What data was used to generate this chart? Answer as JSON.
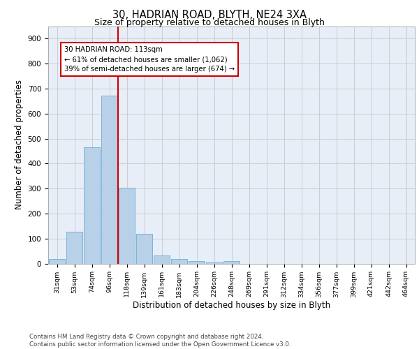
{
  "title1": "30, HADRIAN ROAD, BLYTH, NE24 3XA",
  "title2": "Size of property relative to detached houses in Blyth",
  "xlabel": "Distribution of detached houses by size in Blyth",
  "ylabel": "Number of detached properties",
  "bar_labels": [
    "31sqm",
    "53sqm",
    "74sqm",
    "96sqm",
    "118sqm",
    "139sqm",
    "161sqm",
    "183sqm",
    "204sqm",
    "226sqm",
    "248sqm",
    "269sqm",
    "291sqm",
    "312sqm",
    "334sqm",
    "356sqm",
    "377sqm",
    "399sqm",
    "421sqm",
    "442sqm",
    "464sqm"
  ],
  "bar_values": [
    18,
    128,
    465,
    672,
    302,
    118,
    33,
    18,
    10,
    5,
    10,
    0,
    0,
    0,
    0,
    0,
    0,
    0,
    0,
    0,
    0
  ],
  "bar_color": "#b8d0e8",
  "bar_edge_color": "#6aaed6",
  "vline_color": "#cc0000",
  "annotation_line1": "30 HADRIAN ROAD: 113sqm",
  "annotation_line2": "← 61% of detached houses are smaller (1,062)",
  "annotation_line3": "39% of semi-detached houses are larger (674) →",
  "annotation_box_color": "white",
  "annotation_box_edge": "#cc0000",
  "ylim": [
    0,
    950
  ],
  "yticks": [
    0,
    100,
    200,
    300,
    400,
    500,
    600,
    700,
    800,
    900
  ],
  "grid_color": "#cccccc",
  "bg_color": "#e8eef8",
  "footer": "Contains HM Land Registry data © Crown copyright and database right 2024.\nContains public sector information licensed under the Open Government Licence v3.0.",
  "vline_pos": 3.5
}
